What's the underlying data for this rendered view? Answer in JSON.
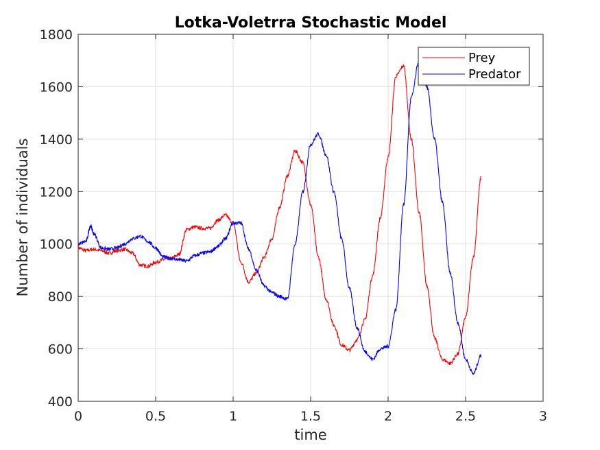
{
  "chart_data": {
    "type": "line",
    "title": "Lotka-Voletrra Stochastic Model",
    "xlabel": "time",
    "ylabel": "Number of individuals",
    "xlim": [
      0,
      3
    ],
    "ylim": [
      400,
      1800
    ],
    "xticks": [
      0,
      0.5,
      1,
      1.5,
      2,
      2.5,
      3
    ],
    "xtick_labels": [
      "0",
      "0.5",
      "1",
      "1.5",
      "2",
      "2.5",
      "3"
    ],
    "yticks": [
      400,
      600,
      800,
      1000,
      1200,
      1400,
      1600,
      1800
    ],
    "ytick_labels": [
      "400",
      "600",
      "800",
      "1000",
      "1200",
      "1400",
      "1600",
      "1800"
    ],
    "grid": true,
    "legend_position": "top-right",
    "series": [
      {
        "name": "Prey",
        "color": "#ff0000",
        "x": [
          0,
          0.05,
          0.1,
          0.15,
          0.2,
          0.25,
          0.3,
          0.35,
          0.4,
          0.45,
          0.5,
          0.55,
          0.6,
          0.65,
          0.7,
          0.75,
          0.8,
          0.85,
          0.9,
          0.95,
          1.0,
          1.05,
          1.1,
          1.15,
          1.2,
          1.25,
          1.3,
          1.35,
          1.4,
          1.45,
          1.5,
          1.55,
          1.6,
          1.65,
          1.7,
          1.75,
          1.8,
          1.85,
          1.9,
          1.95,
          2.0,
          2.05,
          2.1,
          2.15,
          2.2,
          2.25,
          2.3,
          2.35,
          2.4,
          2.45,
          2.5,
          2.55,
          2.6
        ],
        "values": [
          985,
          975,
          980,
          975,
          965,
          975,
          980,
          965,
          920,
          915,
          930,
          940,
          945,
          960,
          1055,
          1065,
          1060,
          1060,
          1090,
          1110,
          1080,
          930,
          855,
          890,
          950,
          1020,
          1140,
          1260,
          1355,
          1310,
          1150,
          950,
          790,
          690,
          615,
          595,
          635,
          710,
          880,
          1100,
          1330,
          1640,
          1680,
          1400,
          1120,
          840,
          640,
          560,
          545,
          580,
          720,
          950,
          1255
        ]
      },
      {
        "name": "Predator",
        "color": "#0000ff",
        "x": [
          0,
          0.05,
          0.08,
          0.1,
          0.15,
          0.2,
          0.25,
          0.3,
          0.35,
          0.4,
          0.45,
          0.5,
          0.55,
          0.6,
          0.65,
          0.7,
          0.75,
          0.8,
          0.85,
          0.9,
          0.95,
          1.0,
          1.05,
          1.1,
          1.15,
          1.2,
          1.25,
          1.3,
          1.35,
          1.4,
          1.45,
          1.5,
          1.55,
          1.6,
          1.65,
          1.7,
          1.75,
          1.8,
          1.85,
          1.9,
          1.95,
          2.0,
          2.05,
          2.1,
          2.15,
          2.2,
          2.25,
          2.3,
          2.35,
          2.4,
          2.45,
          2.5,
          2.55,
          2.6
        ],
        "values": [
          1000,
          1010,
          1070,
          1040,
          985,
          980,
          985,
          1000,
          1020,
          1030,
          1010,
          985,
          950,
          945,
          940,
          935,
          955,
          965,
          970,
          990,
          1020,
          1080,
          1080,
          980,
          900,
          840,
          815,
          800,
          790,
          1000,
          1200,
          1380,
          1420,
          1340,
          1200,
          1020,
          830,
          680,
          590,
          560,
          600,
          610,
          750,
          1150,
          1560,
          1700,
          1600,
          1400,
          1160,
          890,
          700,
          560,
          505,
          575
        ]
      }
    ]
  }
}
